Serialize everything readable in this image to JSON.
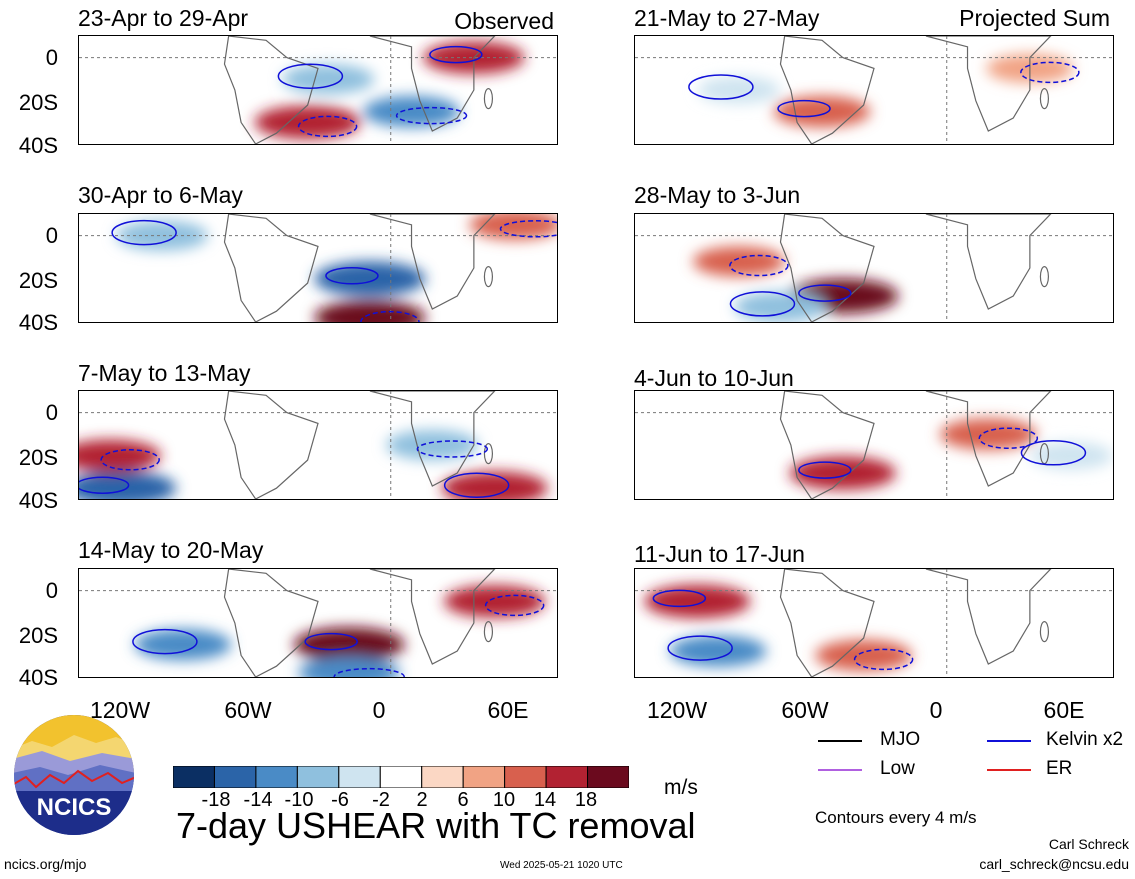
{
  "header": {
    "observed_label": "Observed",
    "projected_label": "Projected Sum"
  },
  "panels": {
    "left": [
      {
        "title": "23-Apr to 29-Apr"
      },
      {
        "title": "30-Apr to 6-May"
      },
      {
        "title": "7-May to 13-May"
      },
      {
        "title": "14-May to 20-May"
      }
    ],
    "right": [
      {
        "title": "21-May to 27-May"
      },
      {
        "title": "28-May to 3-Jun"
      },
      {
        "title": "4-Jun to 10-Jun"
      },
      {
        "title": "11-Jun to 17-Jun"
      }
    ]
  },
  "axes": {
    "y_ticks": [
      "0",
      "20S",
      "40S"
    ],
    "x_ticks": [
      "120W",
      "60W",
      "0",
      "60E"
    ]
  },
  "colorbar": {
    "ticks": [
      "-18",
      "-14",
      "-10",
      "-6",
      "-2",
      "2",
      "6",
      "10",
      "14",
      "18"
    ],
    "colors": [
      "#0b2f63",
      "#2b64a8",
      "#4a8bc6",
      "#8fc0de",
      "#cfe4f0",
      "#ffffff",
      "#fbd7c4",
      "#f1a384",
      "#d8604e",
      "#b22232",
      "#6b0a1e"
    ],
    "units": "m/s"
  },
  "title": "7-day USHEAR with TC removal",
  "legend": {
    "mjo": {
      "label": "MJO",
      "color": "#000000"
    },
    "kelvin": {
      "label": "Kelvin x2",
      "color": "#1010d8"
    },
    "low": {
      "label": "Low",
      "color": "#b060e0"
    },
    "er": {
      "label": "ER",
      "color": "#e02020"
    }
  },
  "contours_note": "Contours every 4 m/s",
  "footer": {
    "left": "ncics.org/mjo",
    "timestamp": "Wed 2025-05-21 1020 UTC",
    "author": "Carl Schreck",
    "email": "carl_schreck@ncsu.edu"
  },
  "logo": {
    "text": "NCICS"
  },
  "chart_data": [
    {
      "type": "heatmap",
      "title": "23-Apr to 29-Apr",
      "variable": "7-day USHEAR",
      "units": "m/s",
      "xlim": [
        "150W",
        "80E"
      ],
      "ylim": [
        "40S",
        "10N"
      ],
      "features": [
        {
          "lon": "40E",
          "lat": "0",
          "sign": "positive",
          "approx_value": 14
        },
        {
          "lon": "40W",
          "lat": "30S",
          "sign": "positive",
          "approx_value": 16
        },
        {
          "lon": "30W",
          "lat": "10S",
          "sign": "negative",
          "approx_value": -10
        },
        {
          "lon": "10E",
          "lat": "25S",
          "sign": "negative",
          "approx_value": -12
        }
      ]
    },
    {
      "type": "heatmap",
      "title": "30-Apr to 6-May",
      "variable": "7-day USHEAR",
      "units": "m/s",
      "xlim": [
        "150W",
        "80E"
      ],
      "ylim": [
        "40S",
        "10N"
      ],
      "features": [
        {
          "lon": "10W",
          "lat": "20S",
          "sign": "negative",
          "approx_value": -18
        },
        {
          "lon": "10W",
          "lat": "38S",
          "sign": "positive",
          "approx_value": 18
        },
        {
          "lon": "110W",
          "lat": "0",
          "sign": "negative",
          "approx_value": -10
        },
        {
          "lon": "60E",
          "lat": "5N",
          "sign": "positive",
          "approx_value": 10
        }
      ]
    },
    {
      "type": "heatmap",
      "title": "7-May to 13-May",
      "variable": "7-day USHEAR",
      "units": "m/s",
      "xlim": [
        "150W",
        "80E"
      ],
      "ylim": [
        "40S",
        "10N"
      ],
      "features": [
        {
          "lon": "130W",
          "lat": "35S",
          "sign": "negative",
          "approx_value": -18
        },
        {
          "lon": "135W",
          "lat": "20S",
          "sign": "positive",
          "approx_value": 14
        },
        {
          "lon": "50E",
          "lat": "35S",
          "sign": "positive",
          "approx_value": 16
        },
        {
          "lon": "20E",
          "lat": "15S",
          "sign": "negative",
          "approx_value": -10
        }
      ]
    },
    {
      "type": "heatmap",
      "title": "14-May to 20-May",
      "variable": "7-day USHEAR",
      "units": "m/s",
      "xlim": [
        "150W",
        "80E"
      ],
      "ylim": [
        "40S",
        "10N"
      ],
      "features": [
        {
          "lon": "20W",
          "lat": "25S",
          "sign": "positive",
          "approx_value": 18
        },
        {
          "lon": "50E",
          "lat": "5S",
          "sign": "positive",
          "approx_value": 14
        },
        {
          "lon": "100W",
          "lat": "25S",
          "sign": "negative",
          "approx_value": -12
        },
        {
          "lon": "20W",
          "lat": "38S",
          "sign": "negative",
          "approx_value": -14
        }
      ]
    },
    {
      "type": "heatmap",
      "title": "21-May to 27-May",
      "variable": "7-day USHEAR",
      "units": "m/s",
      "xlim": [
        "150W",
        "80E"
      ],
      "ylim": [
        "40S",
        "10N"
      ],
      "features": [
        {
          "lon": "60W",
          "lat": "25S",
          "sign": "positive",
          "approx_value": 12
        },
        {
          "lon": "40E",
          "lat": "5S",
          "sign": "positive",
          "approx_value": 8
        },
        {
          "lon": "100W",
          "lat": "15S",
          "sign": "negative",
          "approx_value": -6
        }
      ]
    },
    {
      "type": "heatmap",
      "title": "28-May to 3-Jun",
      "variable": "7-day USHEAR",
      "units": "m/s",
      "xlim": [
        "150W",
        "80E"
      ],
      "ylim": [
        "40S",
        "10N"
      ],
      "features": [
        {
          "lon": "50W",
          "lat": "28S",
          "sign": "positive",
          "approx_value": 18
        },
        {
          "lon": "100W",
          "lat": "12S",
          "sign": "positive",
          "approx_value": 10
        },
        {
          "lon": "80W",
          "lat": "33S",
          "sign": "negative",
          "approx_value": -10
        }
      ]
    },
    {
      "type": "heatmap",
      "title": "4-Jun to 10-Jun",
      "variable": "7-day USHEAR",
      "units": "m/s",
      "xlim": [
        "150W",
        "80E"
      ],
      "ylim": [
        "40S",
        "10N"
      ],
      "features": [
        {
          "lon": "50W",
          "lat": "28S",
          "sign": "positive",
          "approx_value": 16
        },
        {
          "lon": "20E",
          "lat": "10S",
          "sign": "positive",
          "approx_value": 12
        },
        {
          "lon": "60E",
          "lat": "20S",
          "sign": "negative",
          "approx_value": -6
        }
      ]
    },
    {
      "type": "heatmap",
      "title": "11-Jun to 17-Jun",
      "variable": "7-day USHEAR",
      "units": "m/s",
      "xlim": [
        "150W",
        "80E"
      ],
      "ylim": [
        "40S",
        "10N"
      ],
      "features": [
        {
          "lon": "120W",
          "lat": "5S",
          "sign": "positive",
          "approx_value": 16
        },
        {
          "lon": "40W",
          "lat": "30S",
          "sign": "positive",
          "approx_value": 12
        },
        {
          "lon": "110W",
          "lat": "28S",
          "sign": "negative",
          "approx_value": -12
        }
      ]
    }
  ]
}
